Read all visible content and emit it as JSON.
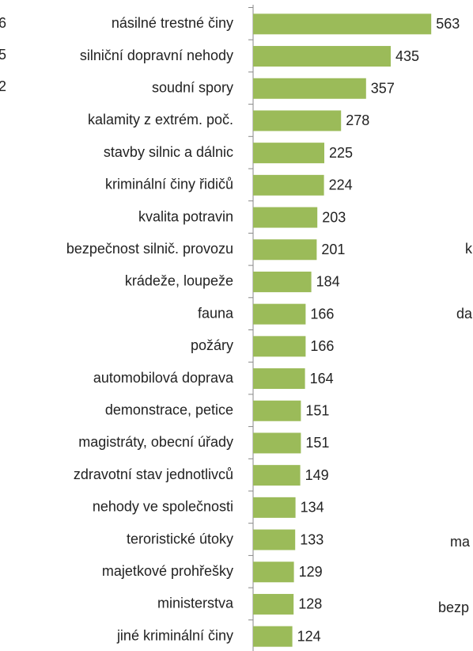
{
  "chart_data": {
    "type": "bar",
    "orientation": "horizontal",
    "color": "#9bbb59",
    "categories": [
      "násilné trestné činy",
      "silniční dopravní nehody",
      "soudní spory",
      "kalamity z extrém. poč.",
      "stavby silnic a dálnic",
      "kriminální činy řidičů",
      "kvalita potravin",
      "bezpečnost silnič. provozu",
      "krádeže, loupeže",
      "fauna",
      "požáry",
      "automobilová doprava",
      "demonstrace, petice",
      "magistráty, obecní úřady",
      "zdravotní stav jednotlivců",
      "nehody ve společnosti",
      "teroristické útoky",
      "majetkové prohřešky",
      "ministerstva",
      "jiné kriminální činy"
    ],
    "values": [
      563,
      435,
      357,
      278,
      225,
      224,
      203,
      201,
      184,
      166,
      166,
      164,
      151,
      151,
      149,
      134,
      133,
      129,
      128,
      124
    ],
    "annotations": [
      "6",
      "5",
      "2",
      "k",
      "da",
      "ma",
      "bezp"
    ]
  }
}
